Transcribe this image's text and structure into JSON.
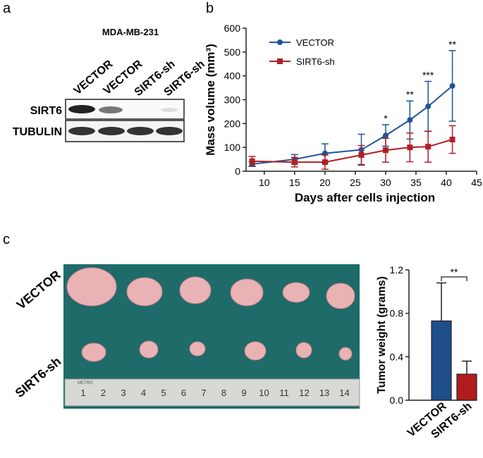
{
  "panel_labels": [
    "a",
    "b",
    "c"
  ],
  "blot": {
    "title": "MDA-MB-231",
    "lanes": [
      "VECTOR",
      "VECTOR",
      "SIRT6-sh",
      "SIRT6-sh"
    ],
    "rows": [
      "SIRT6",
      "TUBULIN"
    ]
  },
  "photo": {
    "rows": [
      "VECTOR",
      "SIRT6-sh"
    ],
    "ruler_brand": "METRO",
    "ruler_numbers": [
      "1",
      "2",
      "3",
      "4",
      "5",
      "6",
      "7",
      "8",
      "9",
      "10",
      "11",
      "12",
      "13",
      "14"
    ]
  },
  "chart_data": [
    {
      "type": "line",
      "x_label": "Days after cells injection",
      "y_label": "Mass volume (mm³)",
      "x": [
        8,
        15,
        20,
        26,
        30,
        34,
        37,
        41
      ],
      "series": [
        {
          "name": "VECTOR",
          "color": "#1f5596",
          "marker": "circle",
          "values": [
            30,
            50,
            75,
            90,
            150,
            215,
            272,
            358
          ],
          "errors": [
            10,
            20,
            40,
            65,
            45,
            80,
            105,
            148
          ]
        },
        {
          "name": "SIRT6-sh",
          "color": "#b01f24",
          "marker": "square",
          "values": [
            42,
            38,
            38,
            68,
            88,
            100,
            103,
            133
          ],
          "errors": [
            20,
            20,
            30,
            40,
            50,
            60,
            65,
            58
          ]
        }
      ],
      "annotations": [
        {
          "x": 30,
          "text": "*"
        },
        {
          "x": 34,
          "text": "**"
        },
        {
          "x": 37,
          "text": "***"
        },
        {
          "x": 41,
          "text": "**"
        }
      ],
      "xlim": [
        7,
        45
      ],
      "xticks": [
        10,
        15,
        20,
        25,
        30,
        35,
        40,
        45
      ],
      "ylim": [
        0,
        600
      ],
      "yticks": [
        0,
        100,
        200,
        300,
        400,
        500,
        600
      ],
      "legend": "upper left"
    },
    {
      "type": "bar",
      "y_label": "Tumor weight (grams)",
      "categories": [
        "VECTOR",
        "SIRT6-sh"
      ],
      "values": [
        0.73,
        0.24
      ],
      "errors": [
        0.35,
        0.12
      ],
      "colors": [
        "#1f4e8c",
        "#b01c1c"
      ],
      "significance": "**",
      "ylim": [
        0,
        1.2
      ],
      "yticks": [
        {
          "value": 0,
          "label": "0.0"
        },
        0.4,
        0.8,
        1.2
      ]
    }
  ]
}
